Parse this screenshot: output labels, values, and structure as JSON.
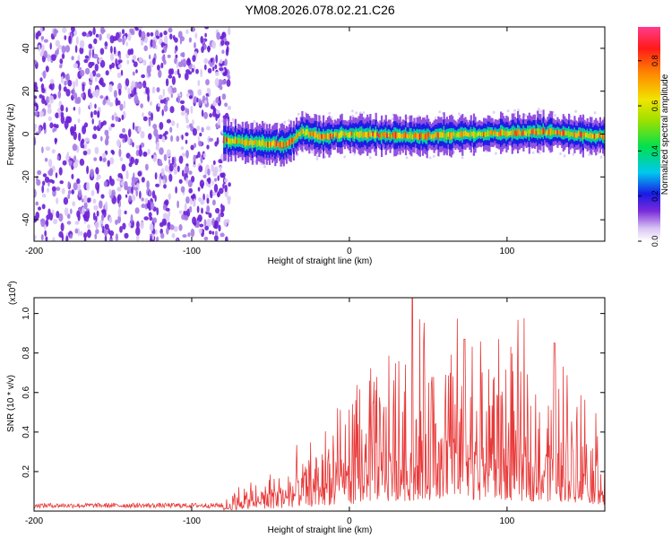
{
  "title": "YM08.2026.078.02.21.C26",
  "chart_data": [
    {
      "type": "heatmap",
      "id": "spectrogram",
      "xlabel": "Height of straight line (km)",
      "ylabel": "Frequency (Hz)",
      "xlim": [
        -200,
        162
      ],
      "ylim": [
        -50,
        50
      ],
      "xticks": [
        -200,
        -100,
        0,
        100
      ],
      "xtick_labels": [
        "-200",
        "-100",
        "0",
        "100"
      ],
      "yticks": [
        -40,
        -20,
        0,
        20,
        40
      ],
      "ytick_labels": [
        "-40",
        "-20",
        "0",
        "20",
        "40"
      ],
      "noise_region_x": [
        -200,
        -80
      ],
      "signal_band": {
        "x_start": -80,
        "center_hz": [
          [
            -80,
            -3
          ],
          [
            -40,
            -5
          ],
          [
            -30,
            1
          ],
          [
            -20,
            -1
          ],
          [
            0,
            0
          ],
          [
            40,
            -1
          ],
          [
            80,
            0
          ],
          [
            120,
            1
          ],
          [
            162,
            -1
          ]
        ],
        "half_width_hz": 5
      },
      "colorbar": {
        "label": "Normalized spectral amplitude",
        "range": [
          0,
          0.95
        ],
        "ticks": [
          0,
          0.2,
          0.4,
          0.6,
          0.8
        ],
        "tick_labels": [
          "0.0",
          "0.2",
          "0.4",
          "0.6",
          "0.8"
        ]
      }
    },
    {
      "type": "line",
      "id": "snr",
      "xlabel": "Height of straight line (km)",
      "ylabel": "SNR (10 * v/v)",
      "scale_label_base": "(x10",
      "scale_label_exp": "4",
      "scale_label_end": ")",
      "xlim": [
        -200,
        162
      ],
      "ylim": [
        0,
        1.08
      ],
      "xticks": [
        -200,
        -100,
        0,
        100
      ],
      "xtick_labels": [
        "-200",
        "-100",
        "0",
        "100"
      ],
      "yticks": [
        0.2,
        0.4,
        0.6,
        0.8,
        1.0
      ],
      "ytick_labels": [
        "0.2",
        "0.4",
        "0.6",
        "0.8",
        "1.0"
      ],
      "color": "#e83a3a",
      "envelope": [
        [
          -200,
          0.03
        ],
        [
          -80,
          0.03
        ],
        [
          -70,
          0.08
        ],
        [
          -50,
          0.12
        ],
        [
          -30,
          0.18
        ],
        [
          -10,
          0.3
        ],
        [
          10,
          0.4
        ],
        [
          30,
          0.5
        ],
        [
          50,
          0.55
        ],
        [
          80,
          0.55
        ],
        [
          110,
          0.5
        ],
        [
          140,
          0.45
        ],
        [
          162,
          0.3
        ]
      ],
      "peaks": [
        [
          40,
          1.08
        ],
        [
          130,
          0.85
        ],
        [
          73,
          0.87
        ],
        [
          15,
          0.55
        ]
      ]
    }
  ]
}
